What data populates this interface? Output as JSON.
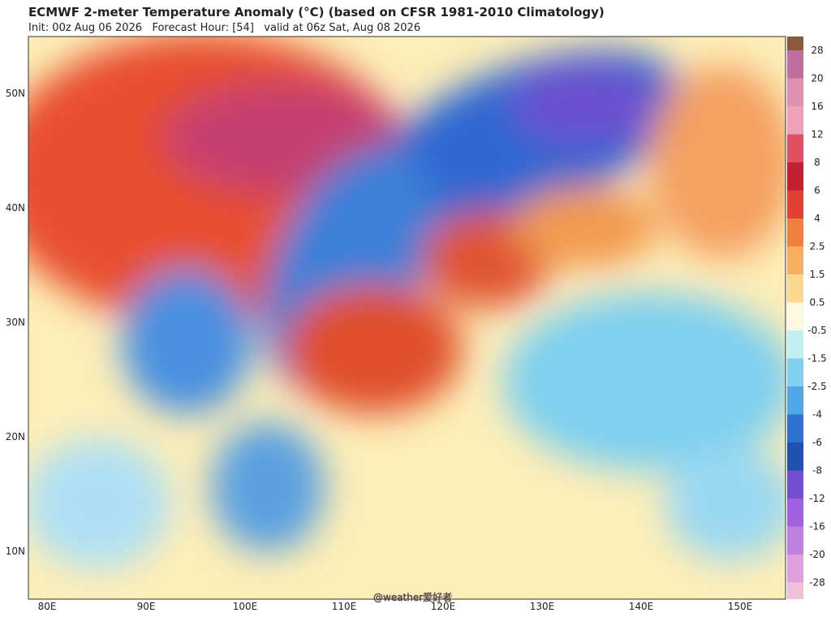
{
  "header": {
    "title": "ECMWF 2-meter Temperature Anomaly (°C) (based on CFSR 1981-2010 Climatology)",
    "subtitle": "Init: 00z Aug 06 2026   Forecast Hour: [54]   valid at 06z Sat, Aug 08 2026"
  },
  "map": {
    "lat_labels": [
      "50N",
      "40N",
      "30N",
      "20N",
      "10N"
    ],
    "lon_labels": [
      "80E",
      "90E",
      "100E",
      "110E",
      "120E",
      "130E",
      "140E",
      "150E"
    ],
    "watermark": "@weather爱好者"
  },
  "colorbar": {
    "labels": [
      28,
      20,
      16,
      12,
      8,
      6,
      4,
      2.5,
      1.5,
      0.5,
      -0.5,
      -1.5,
      -2.5,
      -4,
      -6,
      -8,
      -12,
      -16,
      -20,
      -28
    ],
    "colors": [
      "#8b5a3c",
      "#c070a0",
      "#e090b0",
      "#f0a0b8",
      "#e05060",
      "#c02030",
      "#e04030",
      "#f08040",
      "#f8b060",
      "#fcd890",
      "#fff8e0",
      "#c0f0f0",
      "#80d0f0",
      "#50a8e8",
      "#3070d0",
      "#2050b0",
      "#7050d0",
      "#a060e0",
      "#c080e0",
      "#e0a0e0",
      "#f0c0d8"
    ]
  }
}
